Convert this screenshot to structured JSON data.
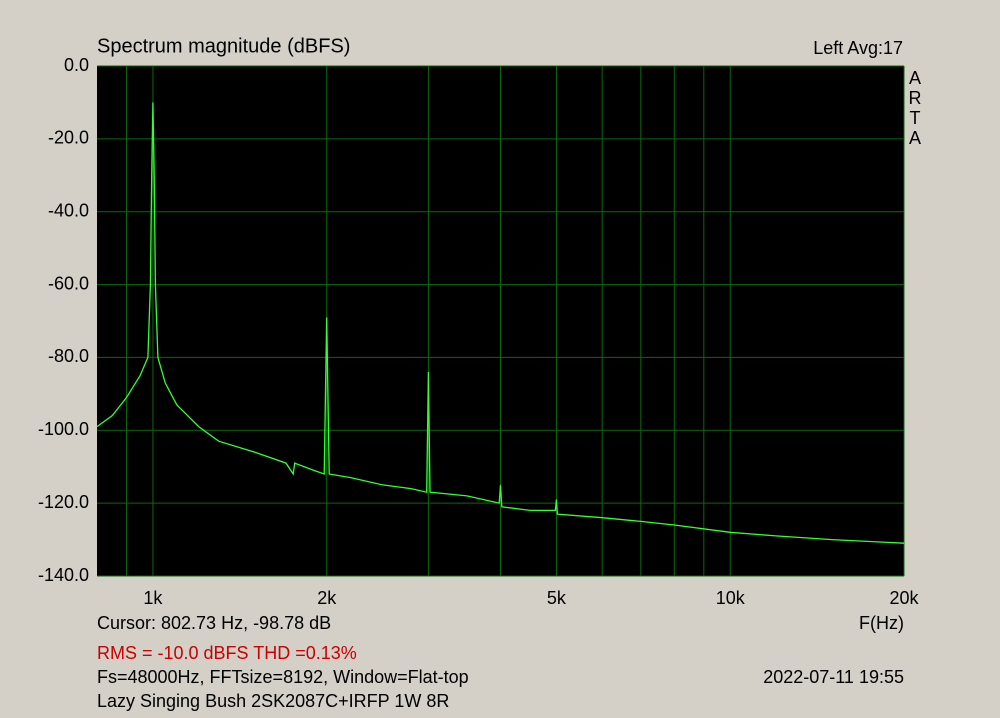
{
  "chart_data": {
    "type": "line",
    "title": "Spectrum magnitude (dBFS)",
    "channel_info": "Left  Avg:17",
    "brand": "ARTA",
    "x_label": "F(Hz)",
    "xscale": "log",
    "xlim": [
      800,
      20000
    ],
    "xticks": [
      {
        "value": 1000,
        "label": "1k"
      },
      {
        "value": 2000,
        "label": "2k"
      },
      {
        "value": 5000,
        "label": "5k"
      },
      {
        "value": 10000,
        "label": "10k"
      },
      {
        "value": 20000,
        "label": "20k"
      }
    ],
    "xminor": [
      900,
      3000,
      4000,
      6000,
      7000,
      8000,
      9000
    ],
    "ylim": [
      -140,
      0
    ],
    "yticks": [
      {
        "value": 0,
        "label": "0.0"
      },
      {
        "value": -20,
        "label": "-20.0"
      },
      {
        "value": -40,
        "label": "-40.0"
      },
      {
        "value": -60,
        "label": "-60.0"
      },
      {
        "value": -80,
        "label": "-80.0"
      },
      {
        "value": -100,
        "label": "-100.0"
      },
      {
        "value": -120,
        "label": "-120.0"
      },
      {
        "value": -140,
        "label": "-140.0"
      }
    ],
    "grid": true,
    "background": "#000000",
    "grid_color": "#0a6a0a",
    "series": [
      {
        "color": "#33ff33",
        "x": [
          800,
          850,
          900,
          950,
          980,
          990,
          995,
          1000,
          1005,
          1010,
          1020,
          1050,
          1100,
          1200,
          1300,
          1500,
          1700,
          1750,
          1760,
          1900,
          1980,
          2000,
          2020,
          2200,
          2500,
          2800,
          2980,
          3000,
          3020,
          3500,
          3980,
          4000,
          4020,
          4500,
          4980,
          5000,
          5020,
          6000,
          7000,
          8000,
          10000,
          12000,
          15000,
          20000
        ],
        "values": [
          -99,
          -96,
          -91,
          -85,
          -80,
          -60,
          -30,
          -10,
          -30,
          -60,
          -80,
          -87,
          -93,
          -99,
          -103,
          -106,
          -109,
          -112,
          -109,
          -111,
          -112,
          -69,
          -112,
          -113,
          -115,
          -116,
          -117,
          -84,
          -117,
          -118,
          -120,
          -115,
          -121,
          -122,
          -122,
          -119,
          -123,
          -124,
          -125,
          -126,
          -128,
          -129,
          -130,
          -131
        ]
      }
    ],
    "cursor_text": "Cursor: 802.73 Hz, -98.78 dB",
    "measurement_text": "RMS =  -10.0 dBFS  THD =0.13%",
    "settings_text": "Fs=48000Hz, FFTsize=8192, Window=Flat-top",
    "timestamp": "2022-07-11  19:55",
    "caption": "Lazy Singing Bush 2SK2087C+IRFP 1W 8R"
  }
}
